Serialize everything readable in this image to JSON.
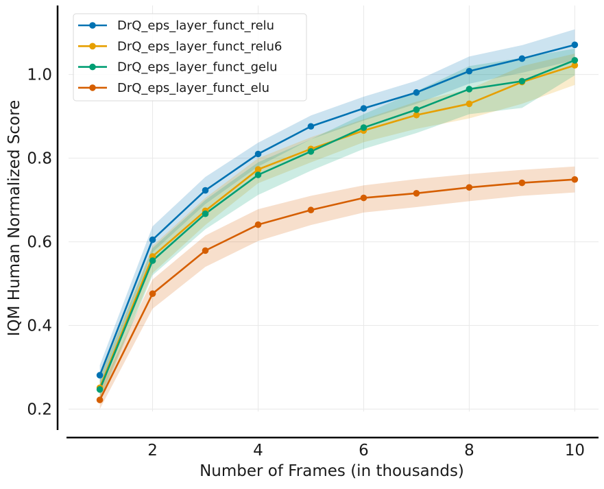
{
  "chart_data": {
    "type": "line",
    "title": "",
    "xlabel": "Number of Frames (in thousands)",
    "ylabel": "IQM Human Normalized Score",
    "x": [
      1,
      2,
      3,
      4,
      5,
      6,
      7,
      8,
      9,
      10
    ],
    "xlim": [
      0.2,
      10.45
    ],
    "ylim": [
      0.15,
      1.165
    ],
    "xticks": [
      2,
      4,
      6,
      8,
      10
    ],
    "xtick_labels": [
      "2",
      "4",
      "6",
      "8",
      "10"
    ],
    "yticks": [
      0.2,
      0.4,
      0.6,
      0.8,
      1.0
    ],
    "ytick_labels": [
      "0.2",
      "0.4",
      "0.6",
      "0.8",
      "1.0"
    ],
    "grid": true,
    "legend_position": "top-left",
    "series": [
      {
        "name": "DrQ_eps_layer_funct_relu",
        "color": "#0072b2",
        "values": [
          0.281,
          0.605,
          0.723,
          0.81,
          0.876,
          0.919,
          0.957,
          1.008,
          1.038,
          1.071
        ],
        "lower": [
          0.255,
          0.575,
          0.69,
          0.78,
          0.845,
          0.89,
          0.93,
          0.978,
          1.004,
          1.034
        ],
        "upper": [
          0.305,
          0.637,
          0.755,
          0.837,
          0.902,
          0.947,
          0.985,
          1.043,
          1.07,
          1.108
        ]
      },
      {
        "name": "DrQ_eps_layer_funct_relu6",
        "color": "#e69f00",
        "values": [
          0.251,
          0.565,
          0.674,
          0.773,
          0.822,
          0.866,
          0.903,
          0.93,
          0.982,
          1.022
        ],
        "lower": [
          0.225,
          0.525,
          0.64,
          0.74,
          0.79,
          0.838,
          0.87,
          0.895,
          0.93,
          0.975
        ],
        "upper": [
          0.278,
          0.59,
          0.705,
          0.8,
          0.85,
          0.893,
          0.935,
          0.965,
          1.02,
          1.05
        ]
      },
      {
        "name": "DrQ_eps_layer_funct_gelu",
        "color": "#009e73",
        "values": [
          0.247,
          0.555,
          0.667,
          0.76,
          0.816,
          0.873,
          0.916,
          0.965,
          0.984,
          1.034
        ],
        "lower": [
          0.218,
          0.52,
          0.63,
          0.712,
          0.77,
          0.822,
          0.86,
          0.905,
          0.92,
          0.998
        ],
        "upper": [
          0.275,
          0.585,
          0.7,
          0.79,
          0.845,
          0.905,
          0.96,
          1.02,
          1.04,
          1.062
        ]
      },
      {
        "name": "DrQ_eps_layer_funct_elu",
        "color": "#d55e00",
        "values": [
          0.222,
          0.476,
          0.579,
          0.641,
          0.676,
          0.705,
          0.716,
          0.73,
          0.741,
          0.749
        ],
        "lower": [
          0.2,
          0.44,
          0.54,
          0.602,
          0.64,
          0.67,
          0.683,
          0.697,
          0.71,
          0.718
        ],
        "upper": [
          0.245,
          0.51,
          0.615,
          0.678,
          0.71,
          0.735,
          0.75,
          0.762,
          0.772,
          0.78
        ]
      }
    ]
  }
}
